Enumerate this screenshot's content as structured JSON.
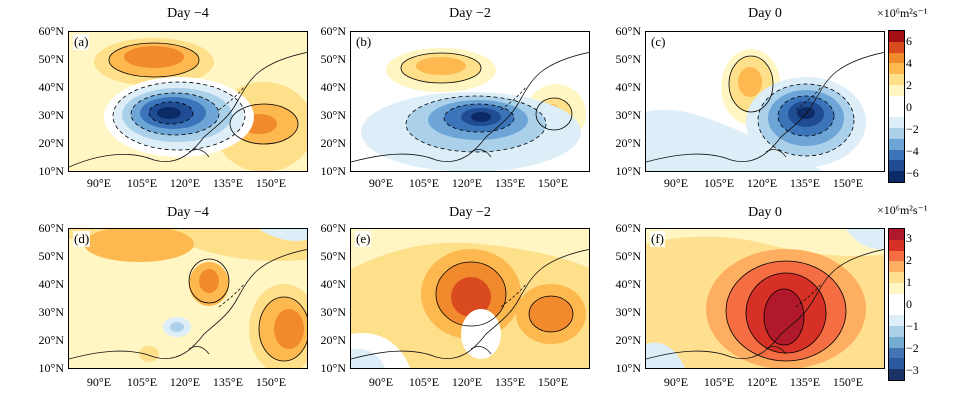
{
  "panels": [
    {
      "id": "a",
      "label": "(a)",
      "title": "Day −4"
    },
    {
      "id": "b",
      "label": "(b)",
      "title": "Day −2"
    },
    {
      "id": "c",
      "label": "(c)",
      "title": "Day 0"
    },
    {
      "id": "d",
      "label": "(d)",
      "title": "Day −4"
    },
    {
      "id": "e",
      "label": "(e)",
      "title": "Day −2"
    },
    {
      "id": "f",
      "label": "(f)",
      "title": "Day 0"
    }
  ],
  "lat_ticks": [
    "60°N",
    "50°N",
    "40°N",
    "30°N",
    "20°N",
    "10°N"
  ],
  "lon_ticks": [
    "90°E",
    "105°E",
    "120°E",
    "135°E",
    "150°E"
  ],
  "colorbars": [
    {
      "unit": "×10⁶m²s⁻¹",
      "tick_labels": [
        "6",
        "4",
        "2",
        "0",
        "−2",
        "−4",
        "−6"
      ],
      "colors": [
        "#a50f15",
        "#d94a1f",
        "#f08a2c",
        "#fdb84f",
        "#fedf8a",
        "#fff6c4",
        "#ffffff",
        "#ffffff",
        "#ddeef8",
        "#abd0ea",
        "#6da6d6",
        "#3b74b8",
        "#1f4c93",
        "#0c2a66"
      ]
    },
    {
      "unit": "×10⁶m²s⁻¹",
      "tick_labels": [
        "3",
        "2",
        "1",
        "0",
        "−1",
        "−2",
        "−3"
      ],
      "colors": [
        "#b2182b",
        "#d73027",
        "#f46d43",
        "#fdae61",
        "#fee090",
        "#fff6c4",
        "#ffffff",
        "#ffffff",
        "#ddeef8",
        "#abd0ea",
        "#74add1",
        "#4575b4",
        "#2c5aa0",
        "#1a3366"
      ]
    }
  ],
  "colors": {
    "land_line": "#111111",
    "negative_core": "#0c2a66",
    "positive_core": "#a50f15"
  }
}
